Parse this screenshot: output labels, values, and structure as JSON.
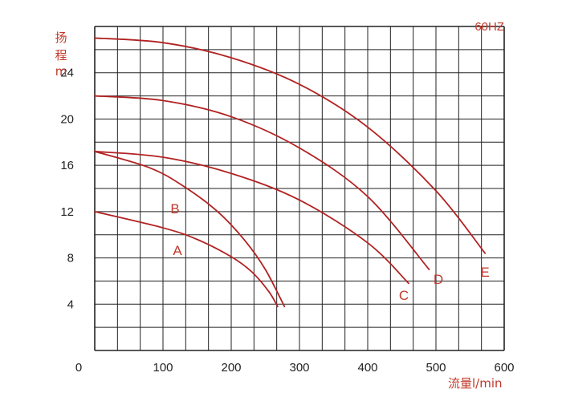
{
  "chart_data": {
    "type": "line",
    "frequency_label": "60HZ",
    "ylabel_chars": [
      "扬",
      "程",
      "m"
    ],
    "xlabel": "流量l/min",
    "x_ticks": [
      0,
      100,
      200,
      300,
      400,
      500,
      600
    ],
    "y_ticks": [
      4,
      8,
      12,
      16,
      20,
      24
    ],
    "xlim": [
      0,
      600
    ],
    "ylim": [
      0,
      28
    ],
    "grid": true,
    "series": [
      {
        "name": "A",
        "x": [
          0,
          100,
          150,
          200,
          230,
          255,
          268
        ],
        "y": [
          12,
          10.6,
          9.6,
          8.1,
          6.8,
          5.1,
          3.8
        ]
      },
      {
        "name": "B",
        "x": [
          0,
          80,
          130,
          180,
          220,
          250,
          278
        ],
        "y": [
          17.2,
          15.8,
          14.2,
          12.0,
          9.5,
          7.0,
          3.8
        ]
      },
      {
        "name": "C",
        "x": [
          0,
          100,
          200,
          300,
          400,
          460
        ],
        "y": [
          17.2,
          16.7,
          15.3,
          13.0,
          9.3,
          5.8
        ]
      },
      {
        "name": "D",
        "x": [
          0,
          100,
          200,
          300,
          400,
          490
        ],
        "y": [
          22,
          21.6,
          20.2,
          17.5,
          13.3,
          7.0
        ]
      },
      {
        "name": "E",
        "x": [
          0,
          100,
          200,
          300,
          400,
          500,
          572
        ],
        "y": [
          27,
          26.6,
          25.3,
          23.0,
          19.3,
          13.8,
          8.4
        ]
      }
    ]
  },
  "colors": {
    "curve": "#b22222",
    "grid": "#222222",
    "label": "#c0392b"
  }
}
